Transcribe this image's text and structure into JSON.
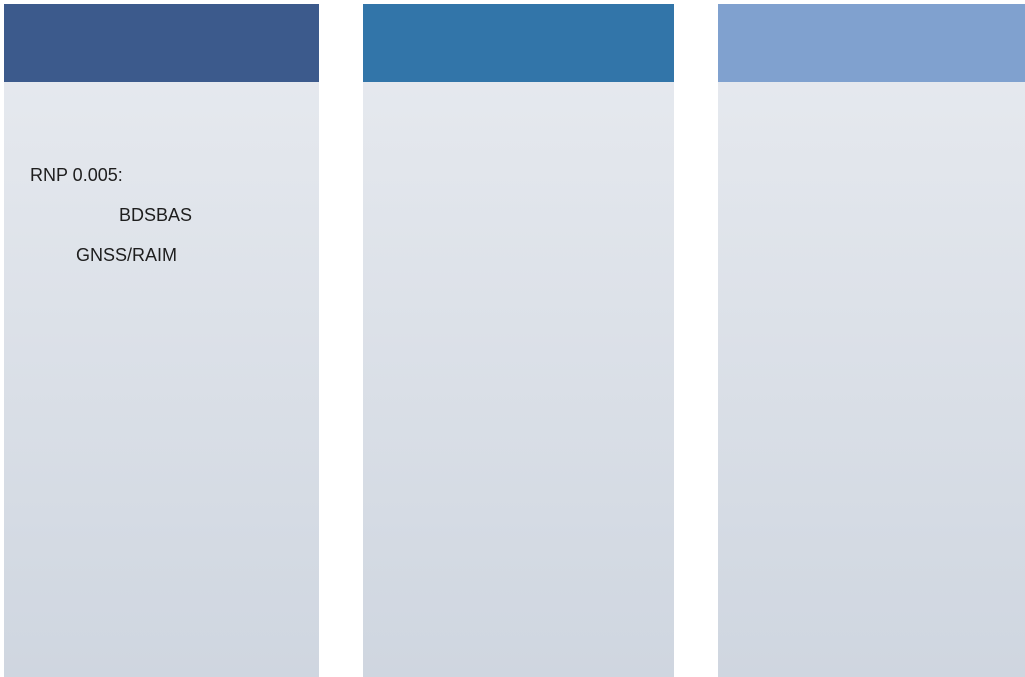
{
  "columns": [
    {
      "id": "col-1",
      "header_color": "#3c5a8c",
      "lines": [
        "RNP 0.005:",
        "BDSBAS",
        "GNSS/RAIM"
      ]
    },
    {
      "id": "col-2",
      "header_color": "#3275a9",
      "lines": []
    },
    {
      "id": "col-3",
      "header_color": "#80a1cf",
      "lines": []
    }
  ]
}
